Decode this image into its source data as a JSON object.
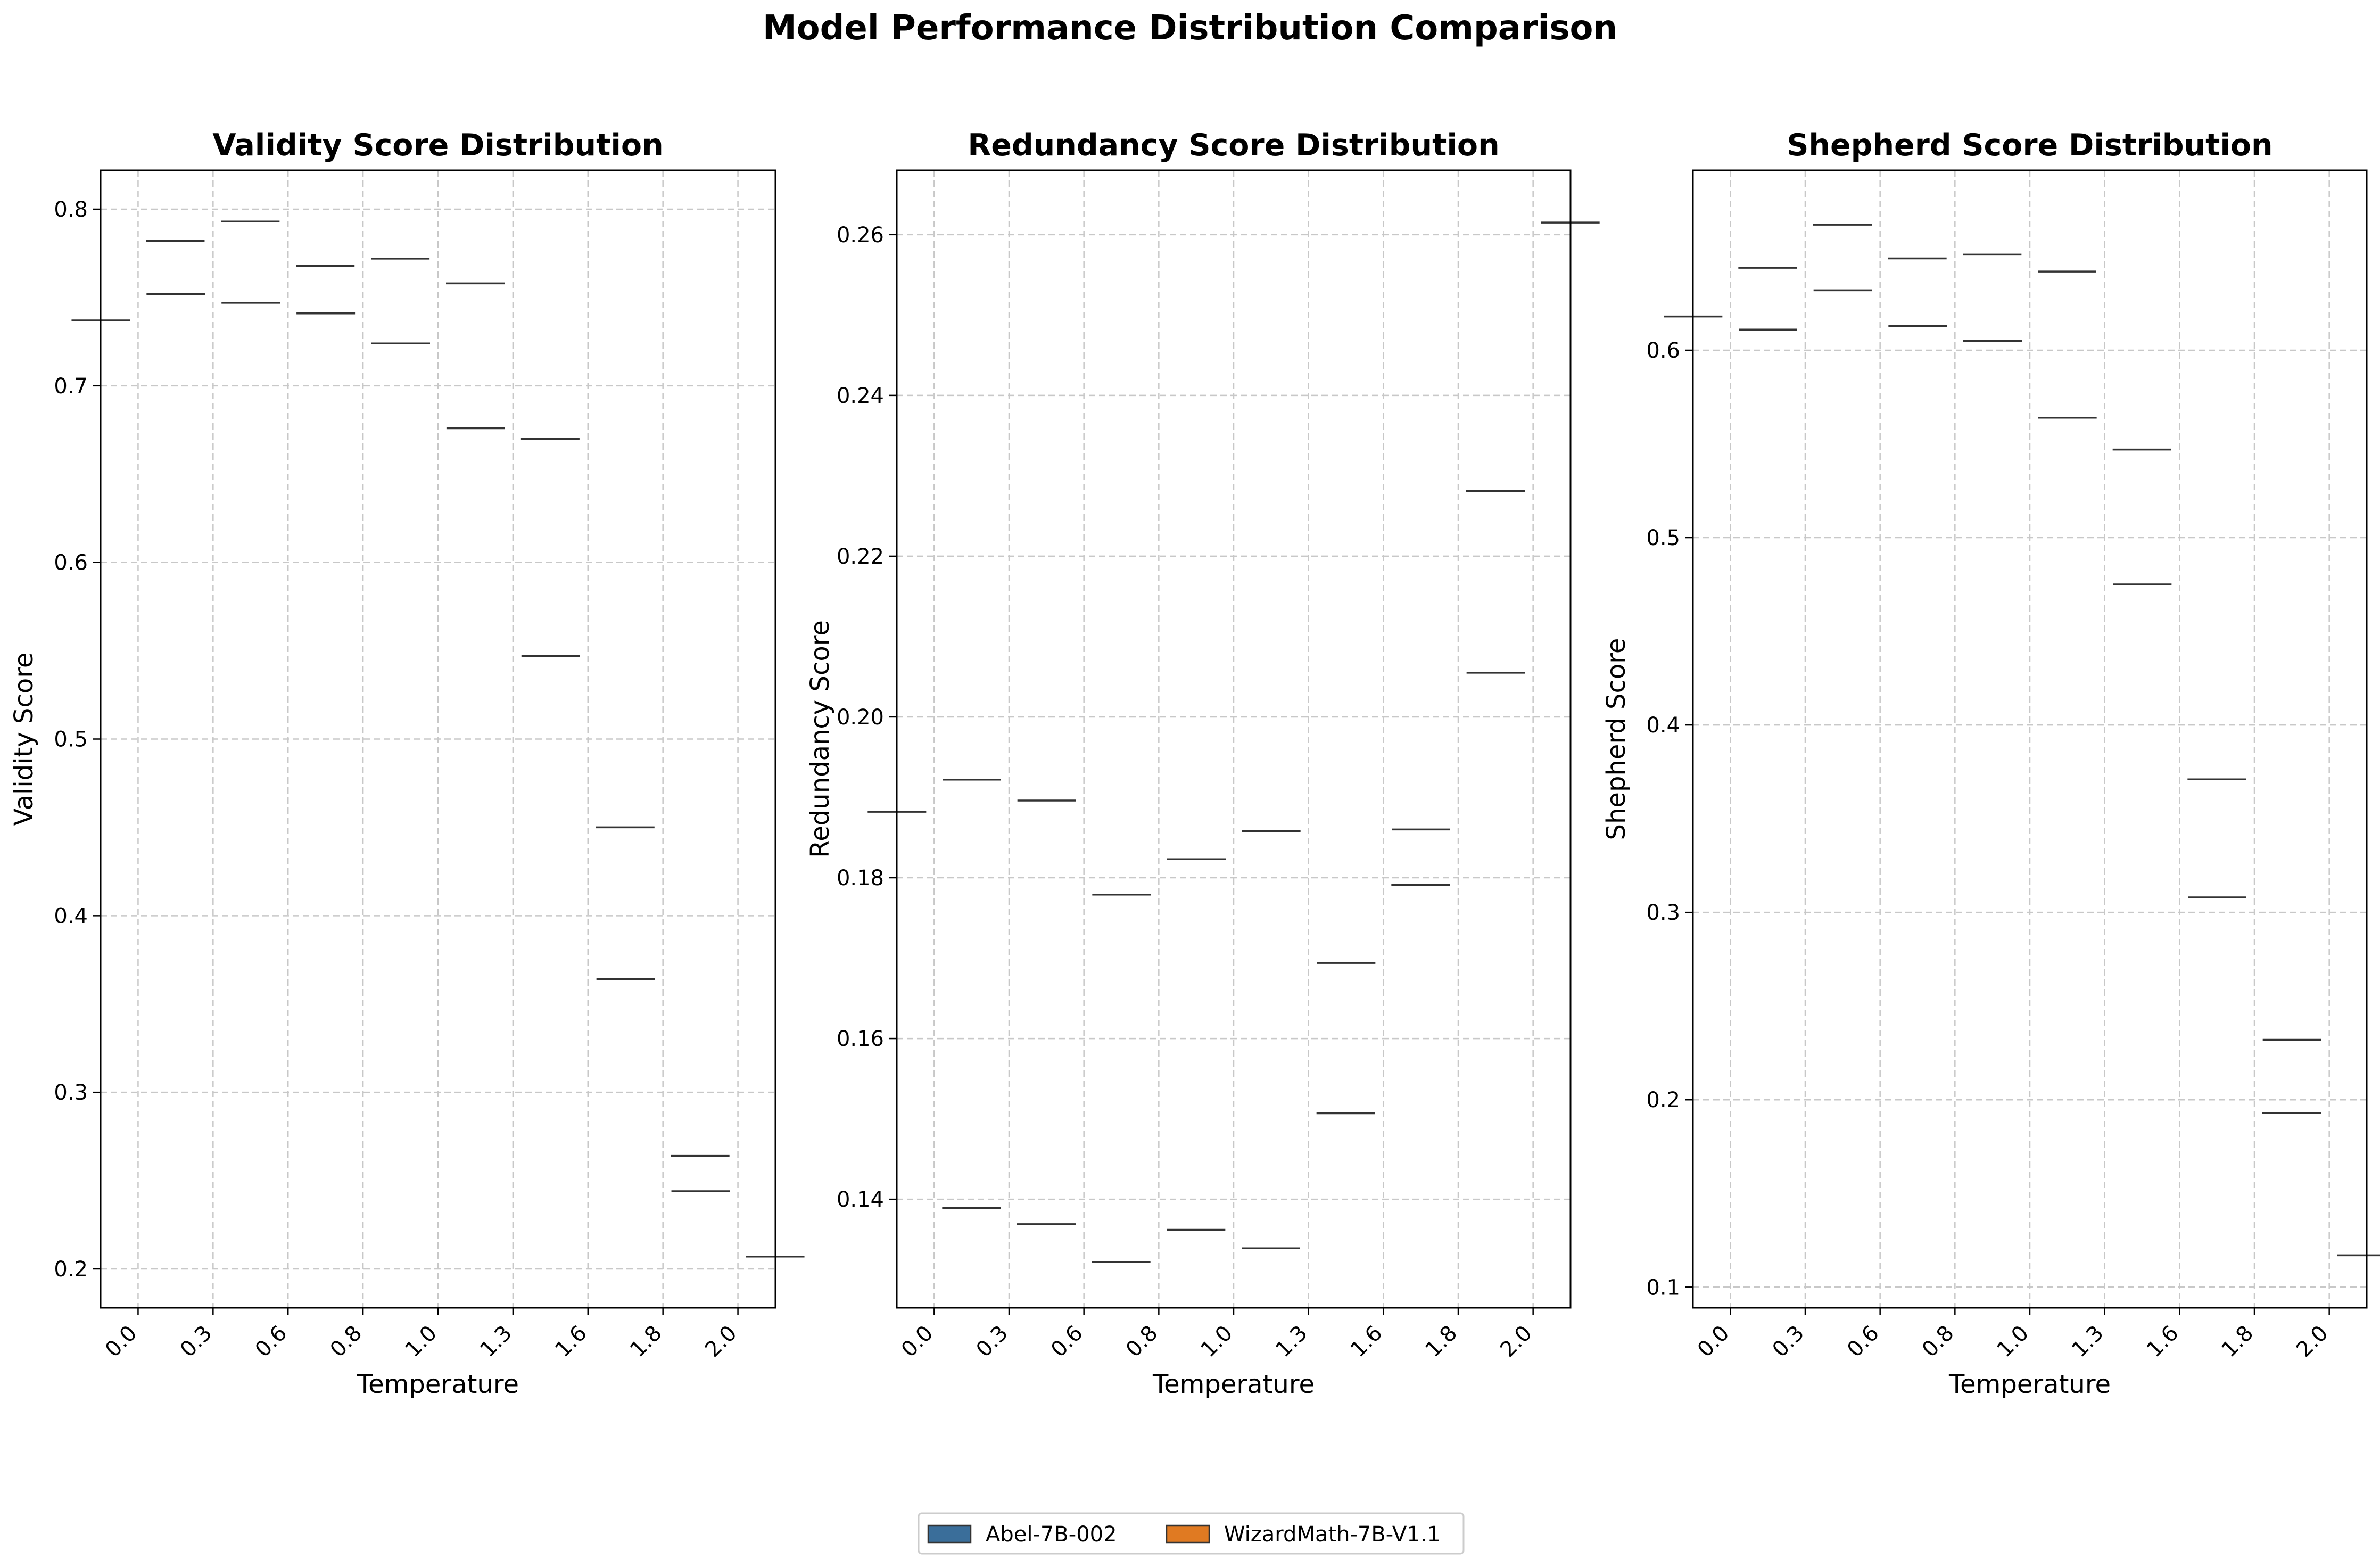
{
  "figure": {
    "title": "Model Performance Distribution Comparison"
  },
  "legend": {
    "placement": "bottom-center",
    "items": [
      {
        "name": "Abel-7B-002",
        "color": "#3a6e9a"
      },
      {
        "name": "WizardMath-7B-V1.1",
        "color": "#e07a22"
      }
    ]
  },
  "chart_data": [
    {
      "type": "violin",
      "title": "Validity Score Distribution",
      "xlabel": "Temperature",
      "ylabel": "Validity Score",
      "categories": [
        "0.0",
        "0.3",
        "0.6",
        "0.8",
        "1.0",
        "1.3",
        "1.6",
        "1.8",
        "2.0"
      ],
      "ylim": [
        0.178,
        0.822
      ],
      "yticks": [
        "0.2",
        "0.3",
        "0.4",
        "0.5",
        "0.6",
        "0.7",
        "0.8"
      ],
      "grid": true,
      "series": [
        {
          "name": "Abel-7B-002",
          "values": [
            0.737,
            0.752,
            0.747,
            0.741,
            0.724,
            0.676,
            0.547,
            0.364,
            0.244
          ]
        },
        {
          "name": "WizardMath-7B-V1.1",
          "values": [
            0.782,
            0.793,
            0.768,
            0.772,
            0.758,
            0.67,
            0.45,
            0.264,
            0.207
          ]
        }
      ]
    },
    {
      "type": "violin",
      "title": "Redundancy Score Distribution",
      "xlabel": "Temperature",
      "ylabel": "Redundancy Score",
      "categories": [
        "0.0",
        "0.3",
        "0.6",
        "0.8",
        "1.0",
        "1.3",
        "1.6",
        "1.8",
        "2.0"
      ],
      "ylim": [
        0.1265,
        0.268
      ],
      "yticks": [
        "0.14",
        "0.16",
        "0.18",
        "0.20",
        "0.22",
        "0.24",
        "0.26"
      ],
      "grid": true,
      "series": [
        {
          "name": "Abel-7B-002",
          "values": [
            0.1882,
            0.1922,
            0.1896,
            0.1779,
            0.1823,
            0.1858,
            0.1694,
            0.186,
            0.2055
          ]
        },
        {
          "name": "WizardMath-7B-V1.1",
          "values": [
            0.1389,
            0.1369,
            0.1322,
            0.1362,
            0.1339,
            0.1507,
            0.1791,
            0.2281,
            0.2615
          ]
        }
      ]
    },
    {
      "type": "violin",
      "title": "Shepherd Score Distribution",
      "xlabel": "Temperature",
      "ylabel": "Shepherd Score",
      "categories": [
        "0.0",
        "0.3",
        "0.6",
        "0.8",
        "1.0",
        "1.3",
        "1.6",
        "1.8",
        "2.0"
      ],
      "ylim": [
        0.089,
        0.696
      ],
      "yticks": [
        "0.1",
        "0.2",
        "0.3",
        "0.4",
        "0.5",
        "0.6"
      ],
      "grid": true,
      "series": [
        {
          "name": "Abel-7B-002",
          "values": [
            0.618,
            0.611,
            0.632,
            0.613,
            0.605,
            0.564,
            0.475,
            0.308,
            0.232
          ]
        },
        {
          "name": "WizardMath-7B-V1.1",
          "values": [
            0.644,
            0.667,
            0.649,
            0.651,
            0.642,
            0.547,
            0.371,
            0.193,
            0.117
          ]
        }
      ]
    }
  ]
}
